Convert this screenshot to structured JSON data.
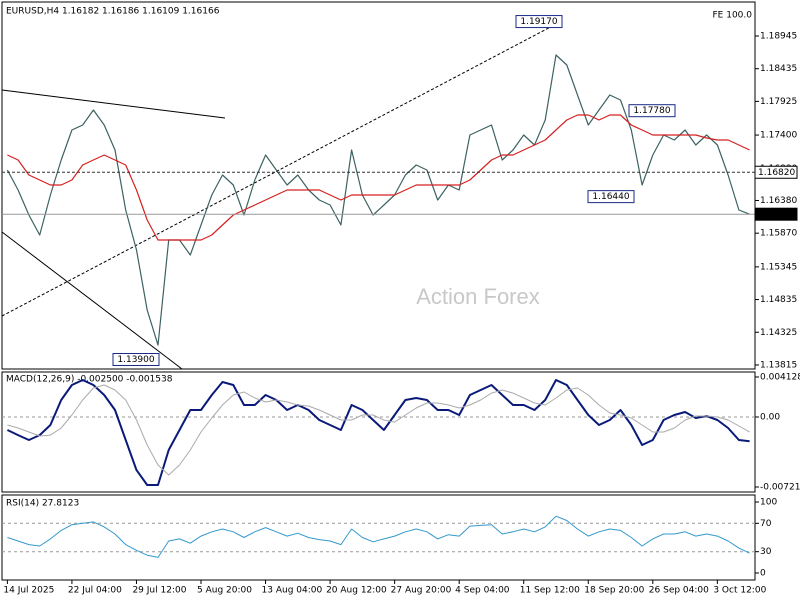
{
  "chart_data": [
    {
      "type": "line",
      "title": "EURUSD,H4 1.16182 1.16186 1.16109 1.16166",
      "subtitle": "FE 100.0",
      "watermark": "Action Forex",
      "series": [
        {
          "color": "#3d6262",
          "values": [
            1.16855,
            1.16543,
            1.16153,
            1.15841,
            1.16465,
            1.17011,
            1.17479,
            1.17557,
            1.17791,
            1.17557,
            1.17167,
            1.16231,
            1.15607,
            1.14671,
            1.14125,
            1.15763,
            1.15763,
            1.15529,
            1.15997,
            1.16465,
            1.16777,
            1.16621,
            1.16153,
            1.16699,
            1.17089,
            1.16855,
            1.16621,
            1.16777,
            1.16543,
            1.16387,
            1.16309,
            1.15997,
            1.17167,
            1.16465,
            1.16153,
            1.16309,
            1.16465,
            1.16777,
            1.16933,
            1.16855,
            1.16387,
            1.16621,
            1.16543,
            1.17401,
            1.17479,
            1.17557,
            1.17011,
            1.17167,
            1.17401,
            1.17245,
            1.17635,
            1.18649,
            1.18493,
            1.18025,
            1.17557,
            1.17791,
            1.18025,
            1.17947,
            1.17479,
            1.16621,
            1.17089,
            1.17401,
            1.17323,
            1.17479,
            1.17245,
            1.17401,
            1.17245,
            1.16777,
            1.16231,
            1.16166
          ]
        },
        {
          "color": "#d62020",
          "values": [
            1.17089,
            1.17011,
            1.16777,
            1.16699,
            1.16621,
            1.16621,
            1.16699,
            1.16933,
            1.17011,
            1.17089,
            1.17011,
            1.16933,
            1.16543,
            1.16075,
            1.15763,
            1.15763,
            1.15763,
            1.15763,
            1.15763,
            1.15841,
            1.15997,
            1.16153,
            1.16231,
            1.16309,
            1.16387,
            1.16465,
            1.16543,
            1.16543,
            1.16543,
            1.16543,
            1.16465,
            1.16387,
            1.16465,
            1.16465,
            1.16465,
            1.16465,
            1.16465,
            1.16543,
            1.16621,
            1.16621,
            1.16621,
            1.16621,
            1.16621,
            1.16699,
            1.16855,
            1.17011,
            1.17089,
            1.17089,
            1.17167,
            1.17245,
            1.17323,
            1.17479,
            1.17635,
            1.17713,
            1.17713,
            1.17635,
            1.17713,
            1.17713,
            1.17557,
            1.17479,
            1.17401,
            1.17401,
            1.17401,
            1.17401,
            1.17401,
            1.17354,
            1.17323,
            1.17323,
            1.17245,
            1.17167
          ]
        }
      ],
      "ylim": [
        1.13752,
        1.19475
      ],
      "yticks": [
        1.18945,
        1.18435,
        1.17925,
        {
          "value": 1.174,
          "label": "1.17400"
        },
        {
          "value": 1.1688,
          "label": "1.16880"
        },
        {
          "value": 1.1638,
          "label": "1.16380"
        },
        {
          "value": 1.1587,
          "label": "1.15870"
        },
        1.15345,
        1.14835,
        1.14325,
        1.13815
      ],
      "annotations": [
        {
          "label": "1.19170",
          "value": 1.1917,
          "side": "left"
        },
        {
          "label": "1.17780",
          "value": 1.1778,
          "side": "left"
        },
        {
          "label": "1.16440",
          "value": 1.1644,
          "side": "left"
        },
        {
          "label": "1.13900",
          "value": 1.139,
          "side": "left"
        },
        {
          "label": "1.16820",
          "value": 1.1682,
          "side": "right",
          "line": "dashed"
        },
        {
          "label": "1.16166",
          "value": 1.16166,
          "side": "right",
          "line": "solid"
        }
      ]
    },
    {
      "type": "line",
      "title": "MACD(12,26,9) -0.002500 -0.001538",
      "series": [
        {
          "color": "#0a1a7a",
          "width": 2,
          "values": [
            -0.00134,
            -0.00186,
            -0.00237,
            -0.00186,
            -0.00082,
            0.00175,
            0.0033,
            0.00382,
            0.0033,
            0.00227,
            0.00072,
            -0.00237,
            -0.00547,
            -0.00701,
            -0.00701,
            -0.0034,
            -0.00134,
            0.00072,
            0.00072,
            0.00227,
            0.00361,
            0.0033,
            0.00124,
            0.00124,
            0.00227,
            0.00175,
            0.00072,
            0.00124,
            0.00072,
            -0.00031,
            -0.00082,
            -0.00134,
            0.00124,
            0.00072,
            -0.00031,
            -0.00134,
            0.00021,
            0.00175,
            0.00196,
            0.00175,
            0.00072,
            0.00072,
            0.00021,
            0.00227,
            0.00278,
            0.0033,
            0.00227,
            0.00124,
            0.00124,
            0.00072,
            0.00175,
            0.00382,
            0.0033,
            0.00175,
            0.00021,
            -0.00082,
            -0.00031,
            0.00072,
            -0.00082,
            -0.00289,
            -0.00237,
            -0.00031,
            0.00021,
            0.00052,
            -0.0001,
            0.0001,
            -0.00031,
            -0.00113,
            -0.00237,
            -0.0025
          ]
        },
        {
          "color": "#aaaaaa",
          "width": 1,
          "values": [
            -0.00082,
            -0.00113,
            -0.00155,
            -0.00196,
            -0.00186,
            -0.00113,
            0.00021,
            0.00175,
            0.00299,
            0.0033,
            0.00278,
            0.00175,
            -0.00031,
            -0.00289,
            -0.00495,
            -0.00598,
            -0.00495,
            -0.0034,
            -0.00155,
            -0.0001,
            0.00124,
            0.00227,
            0.00258,
            0.00196,
            0.00155,
            0.00175,
            0.00155,
            0.00124,
            0.00113,
            0.00072,
            0.00021,
            -0.00031,
            -0.00031,
            0.00021,
            0.00021,
            -0.00031,
            -0.00052,
            0.00021,
            0.00093,
            0.00144,
            0.00144,
            0.00124,
            0.00093,
            0.00124,
            0.00175,
            0.00247,
            0.00278,
            0.00247,
            0.00196,
            0.00144,
            0.00124,
            0.00196,
            0.00278,
            0.00299,
            0.00227,
            0.00124,
            0.00041,
            0.00021,
            -0.0001,
            -0.00082,
            -0.00155,
            -0.00155,
            -0.00113,
            -0.00031,
            0.0001,
            0.0001,
            0.0,
            -0.00031,
            -0.00093,
            -0.001538
          ]
        }
      ],
      "ylim": [
        -0.00773,
        0.00464
      ],
      "yticks": [
        0.004128,
        {
          "value": 0,
          "label": "0.00"
        },
        -0.007216
      ],
      "levels": [
        0
      ]
    },
    {
      "type": "line",
      "title": "RSI(14) 27.8123",
      "categories": [
        "14 Jul 2025",
        null,
        null,
        null,
        null,
        null,
        "22 Jul 04:00",
        null,
        null,
        null,
        null,
        null,
        "29 Jul 12:00",
        null,
        null,
        null,
        null,
        null,
        "5 Aug 20:00",
        null,
        null,
        null,
        null,
        null,
        "13 Aug 04:00",
        null,
        null,
        null,
        null,
        null,
        "20 Aug 12:00",
        null,
        null,
        null,
        null,
        null,
        "27 Aug 20:00",
        null,
        null,
        null,
        null,
        null,
        "4 Sep 04:00",
        null,
        null,
        null,
        null,
        null,
        "11 Sep 12:00",
        null,
        null,
        null,
        null,
        null,
        "18 Sep 20:00",
        null,
        null,
        null,
        null,
        null,
        "26 Sep 04:00",
        null,
        null,
        null,
        null,
        null,
        "3 Oct 12:00",
        null,
        null,
        null
      ],
      "series": [
        {
          "color": "#3399cc",
          "width": 1,
          "values": [
            50,
            45,
            40,
            38,
            48,
            60,
            68,
            70,
            72,
            65,
            55,
            40,
            32,
            25,
            22,
            45,
            48,
            42,
            52,
            58,
            62,
            58,
            50,
            58,
            64,
            58,
            52,
            56,
            50,
            47,
            45,
            40,
            62,
            50,
            44,
            48,
            52,
            58,
            62,
            58,
            48,
            54,
            52,
            66,
            67,
            68,
            55,
            58,
            62,
            58,
            65,
            80,
            74,
            62,
            52,
            58,
            62,
            60,
            50,
            38,
            48,
            55,
            55,
            58,
            52,
            55,
            52,
            45,
            35,
            27.8123
          ]
        }
      ],
      "ylim": [
        -9.9,
        109.9
      ],
      "yticks": [
        100,
        70,
        30,
        0
      ],
      "levels": [
        30,
        70
      ]
    }
  ]
}
